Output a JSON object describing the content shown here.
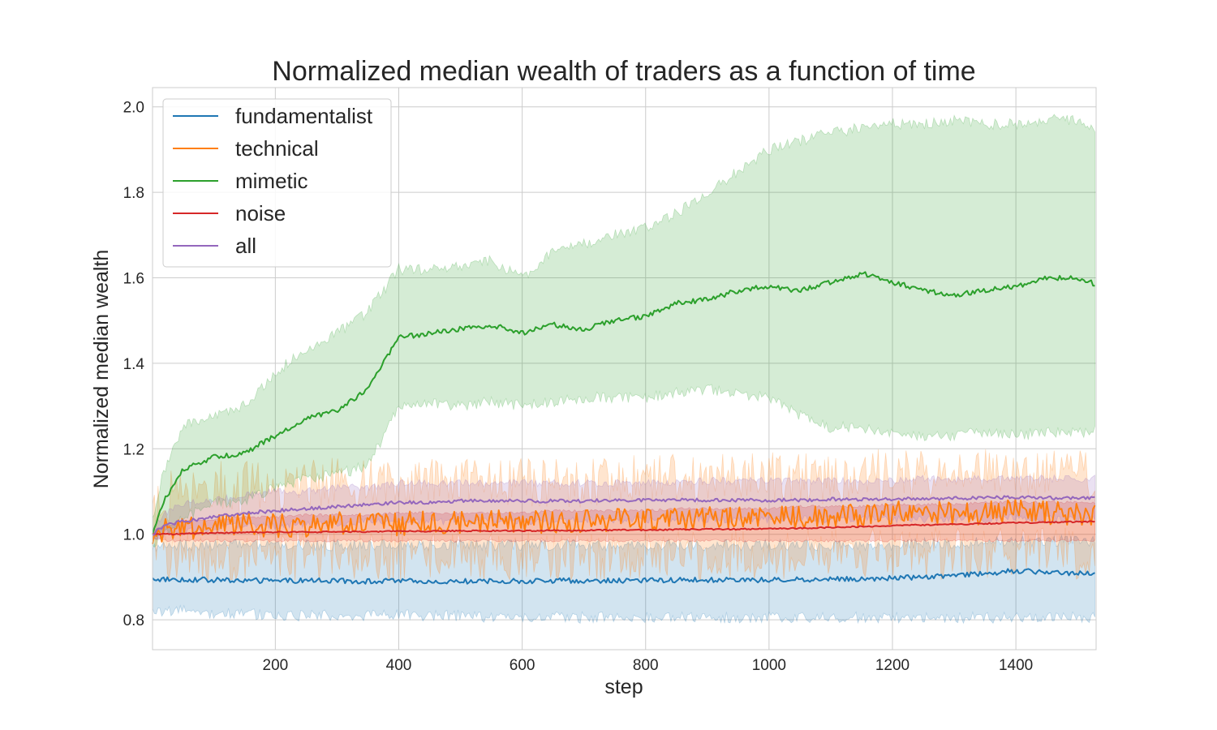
{
  "chart_data": {
    "type": "line",
    "title": "Normalized median wealth of traders as a function of time",
    "xlabel": "step",
    "ylabel": "Normalized median wealth",
    "xlim": [
      1,
      1530
    ],
    "ylim": [
      0.73,
      2.045
    ],
    "xticks": [
      200,
      400,
      600,
      800,
      1000,
      1200,
      1400
    ],
    "xtick_labels": [
      "200",
      "400",
      "600",
      "800",
      "1000",
      "1200",
      "1400"
    ],
    "yticks": [
      0.8,
      1.0,
      1.2,
      1.4,
      1.6,
      1.8,
      2.0
    ],
    "ytick_labels": [
      "0.8",
      "1.0",
      "1.2",
      "1.4",
      "1.6",
      "1.8",
      "2.0"
    ],
    "grid": true,
    "legend_position": "top-left",
    "x": [
      1,
      20,
      50,
      100,
      150,
      200,
      250,
      300,
      350,
      400,
      450,
      500,
      550,
      600,
      650,
      700,
      750,
      800,
      850,
      900,
      950,
      1000,
      1050,
      1100,
      1150,
      1200,
      1250,
      1300,
      1350,
      1400,
      1450,
      1500,
      1530
    ],
    "series": [
      {
        "name": "fundamentalist",
        "color": "#1f77b4",
        "noise": 0.006,
        "values": [
          0.895,
          0.895,
          0.894,
          0.893,
          0.892,
          0.891,
          0.892,
          0.891,
          0.89,
          0.891,
          0.889,
          0.89,
          0.89,
          0.891,
          0.891,
          0.892,
          0.891,
          0.892,
          0.893,
          0.893,
          0.893,
          0.893,
          0.894,
          0.895,
          0.896,
          0.898,
          0.9,
          0.905,
          0.908,
          0.915,
          0.91,
          0.91,
          0.91
        ],
        "lower": [
          0.82,
          0.82,
          0.82,
          0.815,
          0.815,
          0.81,
          0.81,
          0.81,
          0.81,
          0.81,
          0.81,
          0.81,
          0.805,
          0.805,
          0.805,
          0.805,
          0.805,
          0.805,
          0.805,
          0.805,
          0.805,
          0.805,
          0.805,
          0.805,
          0.805,
          0.805,
          0.805,
          0.805,
          0.805,
          0.805,
          0.805,
          0.805,
          0.805
        ],
        "upper": [
          0.97,
          0.97,
          0.975,
          0.975,
          0.975,
          0.975,
          0.975,
          0.975,
          0.975,
          0.975,
          0.975,
          0.975,
          0.975,
          0.975,
          0.975,
          0.975,
          0.975,
          0.975,
          0.975,
          0.975,
          0.975,
          0.975,
          0.975,
          0.975,
          0.975,
          0.975,
          0.98,
          0.98,
          0.98,
          0.985,
          0.985,
          0.985,
          0.985
        ]
      },
      {
        "name": "technical",
        "color": "#ff7f0e",
        "noise": 0.028,
        "values": [
          1.0,
          1.01,
          1.015,
          1.02,
          1.02,
          1.02,
          1.02,
          1.025,
          1.02,
          1.025,
          1.03,
          1.025,
          1.03,
          1.03,
          1.03,
          1.03,
          1.035,
          1.035,
          1.035,
          1.04,
          1.04,
          1.04,
          1.04,
          1.045,
          1.045,
          1.05,
          1.05,
          1.05,
          1.05,
          1.055,
          1.05,
          1.05,
          1.05
        ],
        "lower": [
          0.97,
          0.96,
          0.95,
          0.95,
          0.95,
          0.95,
          0.95,
          0.95,
          0.95,
          0.95,
          0.95,
          0.95,
          0.95,
          0.95,
          0.95,
          0.95,
          0.95,
          0.95,
          0.95,
          0.95,
          0.95,
          0.95,
          0.95,
          0.955,
          0.955,
          0.955,
          0.955,
          0.955,
          0.955,
          0.96,
          0.955,
          0.955,
          0.955
        ],
        "upper": [
          1.03,
          1.08,
          1.1,
          1.11,
          1.11,
          1.11,
          1.12,
          1.12,
          1.12,
          1.12,
          1.12,
          1.12,
          1.12,
          1.12,
          1.12,
          1.12,
          1.12,
          1.13,
          1.13,
          1.13,
          1.13,
          1.13,
          1.13,
          1.13,
          1.14,
          1.14,
          1.14,
          1.14,
          1.14,
          1.15,
          1.14,
          1.14,
          1.14
        ]
      },
      {
        "name": "mimetic",
        "color": "#2ca02c",
        "noise": 0.006,
        "values": [
          1.0,
          1.08,
          1.15,
          1.18,
          1.19,
          1.23,
          1.27,
          1.29,
          1.34,
          1.46,
          1.47,
          1.48,
          1.49,
          1.47,
          1.49,
          1.48,
          1.5,
          1.51,
          1.54,
          1.55,
          1.57,
          1.58,
          1.57,
          1.59,
          1.61,
          1.59,
          1.57,
          1.56,
          1.57,
          1.58,
          1.6,
          1.6,
          1.585
        ],
        "lower": [
          0.97,
          1.0,
          1.04,
          1.07,
          1.08,
          1.11,
          1.13,
          1.14,
          1.16,
          1.3,
          1.31,
          1.3,
          1.31,
          1.3,
          1.31,
          1.32,
          1.32,
          1.32,
          1.33,
          1.34,
          1.33,
          1.32,
          1.28,
          1.25,
          1.25,
          1.24,
          1.23,
          1.23,
          1.24,
          1.23,
          1.24,
          1.24,
          1.24
        ],
        "upper": [
          1.04,
          1.15,
          1.25,
          1.28,
          1.3,
          1.38,
          1.43,
          1.47,
          1.52,
          1.62,
          1.62,
          1.63,
          1.64,
          1.6,
          1.66,
          1.68,
          1.7,
          1.72,
          1.75,
          1.8,
          1.85,
          1.9,
          1.92,
          1.94,
          1.95,
          1.96,
          1.96,
          1.97,
          1.96,
          1.96,
          1.97,
          1.97,
          1.95
        ]
      },
      {
        "name": "noise",
        "color": "#d62728",
        "noise": 0.0015,
        "values": [
          1.0,
          1.0,
          1.001,
          1.003,
          1.004,
          1.005,
          1.005,
          1.006,
          1.006,
          1.007,
          1.007,
          1.008,
          1.008,
          1.008,
          1.009,
          1.009,
          1.01,
          1.01,
          1.011,
          1.012,
          1.012,
          1.013,
          1.014,
          1.016,
          1.018,
          1.02,
          1.022,
          1.023,
          1.025,
          1.027,
          1.028,
          1.029,
          1.03
        ],
        "lower": [
          0.99,
          0.985,
          0.985,
          0.985,
          0.985,
          0.985,
          0.985,
          0.985,
          0.985,
          0.985,
          0.985,
          0.985,
          0.985,
          0.985,
          0.985,
          0.985,
          0.985,
          0.985,
          0.985,
          0.985,
          0.985,
          0.985,
          0.985,
          0.985,
          0.985,
          0.985,
          0.985,
          0.985,
          0.985,
          0.985,
          0.985,
          0.985,
          0.985
        ],
        "upper": [
          1.01,
          1.02,
          1.03,
          1.035,
          1.04,
          1.04,
          1.045,
          1.045,
          1.045,
          1.05,
          1.05,
          1.05,
          1.05,
          1.05,
          1.055,
          1.055,
          1.055,
          1.055,
          1.06,
          1.06,
          1.06,
          1.06,
          1.065,
          1.065,
          1.065,
          1.07,
          1.07,
          1.07,
          1.075,
          1.075,
          1.075,
          1.075,
          1.075
        ]
      },
      {
        "name": "all",
        "color": "#9467bd",
        "noise": 0.004,
        "values": [
          1.0,
          1.02,
          1.03,
          1.04,
          1.05,
          1.055,
          1.06,
          1.065,
          1.07,
          1.075,
          1.075,
          1.078,
          1.078,
          1.078,
          1.078,
          1.078,
          1.08,
          1.08,
          1.08,
          1.08,
          1.08,
          1.08,
          1.08,
          1.082,
          1.082,
          1.083,
          1.083,
          1.084,
          1.085,
          1.087,
          1.085,
          1.085,
          1.085
        ],
        "lower": [
          0.99,
          1.0,
          1.005,
          1.01,
          1.02,
          1.02,
          1.025,
          1.025,
          1.03,
          1.03,
          1.03,
          1.03,
          1.03,
          1.03,
          1.03,
          1.035,
          1.035,
          1.035,
          1.035,
          1.035,
          1.035,
          1.035,
          1.035,
          1.035,
          1.035,
          1.035,
          1.035,
          1.035,
          1.035,
          1.04,
          1.035,
          1.035,
          1.035
        ],
        "upper": [
          1.01,
          1.05,
          1.07,
          1.08,
          1.09,
          1.1,
          1.1,
          1.11,
          1.11,
          1.12,
          1.12,
          1.12,
          1.12,
          1.12,
          1.12,
          1.12,
          1.12,
          1.12,
          1.12,
          1.125,
          1.125,
          1.125,
          1.125,
          1.125,
          1.125,
          1.125,
          1.13,
          1.13,
          1.13,
          1.13,
          1.13,
          1.13,
          1.13
        ]
      }
    ]
  }
}
